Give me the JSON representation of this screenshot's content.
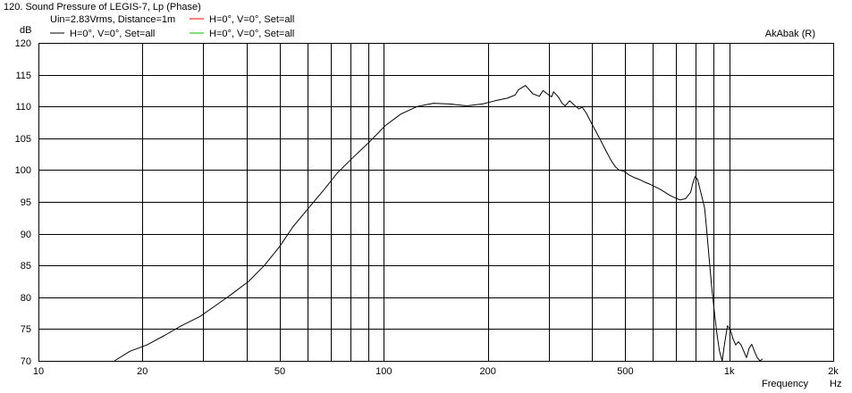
{
  "header": {
    "title": "120. Sound Pressure of LEGIS-7, Lp (Phase)",
    "watermark": "AkAbak (R)"
  },
  "legend": {
    "condition": "Uin=2.83Vrms, Distance=1m",
    "entries": [
      {
        "label": "H=0°, V=0°, Set=all",
        "color": "#000000"
      },
      {
        "label": "H=0°, V=0°, Set=all",
        "color": "#ff0000"
      },
      {
        "label": "H=0°, V=0°, Set=all",
        "color": "#00c000"
      }
    ]
  },
  "chart_data": {
    "type": "line",
    "x_scale": "log",
    "xlim": [
      10,
      2000
    ],
    "ylim": [
      70,
      120
    ],
    "grid": true,
    "ylabel": "dB",
    "xlabel": "Frequency",
    "xunit": "Hz",
    "x_ticks": [
      {
        "v": 10,
        "label": "10"
      },
      {
        "v": 20,
        "label": "20"
      },
      {
        "v": 50,
        "label": "50"
      },
      {
        "v": 100,
        "label": "100"
      },
      {
        "v": 200,
        "label": "200"
      },
      {
        "v": 500,
        "label": "500"
      },
      {
        "v": 1000,
        "label": "1k"
      },
      {
        "v": 2000,
        "label": "2k"
      }
    ],
    "y_ticks": [
      {
        "v": 70,
        "label": "70"
      },
      {
        "v": 75,
        "label": "75"
      },
      {
        "v": 80,
        "label": "80"
      },
      {
        "v": 85,
        "label": "85"
      },
      {
        "v": 90,
        "label": "90"
      },
      {
        "v": 95,
        "label": "95"
      },
      {
        "v": 100,
        "label": "100"
      },
      {
        "v": 105,
        "label": "105"
      },
      {
        "v": 110,
        "label": "110"
      },
      {
        "v": 115,
        "label": "115"
      },
      {
        "v": 120,
        "label": "120"
      }
    ],
    "series": [
      {
        "name": "H=0°, V=0°, Set=all",
        "color": "#000000",
        "x": [
          16.6,
          18.4,
          20.6,
          23.2,
          25.9,
          29.4,
          33.2,
          36.3,
          40.6,
          45.1,
          50.0,
          54.4,
          60.5,
          67.3,
          73.2,
          81.5,
          91.1,
          101,
          112,
          125,
          139,
          155,
          174,
          193,
          210,
          228,
          240,
          245,
          250,
          257,
          263,
          270,
          282,
          289,
          297,
          306,
          310,
          320,
          328,
          335,
          345,
          356,
          367,
          375,
          386,
          398,
          411,
          425,
          440,
          455,
          468,
          480,
          496,
          514,
          532,
          550,
          569,
          588,
          609,
          630,
          652,
          675,
          698,
          722,
          747,
          773,
          785,
          797,
          810,
          823,
          836,
          849,
          862,
          875,
          888,
          904,
          920,
          937,
          954,
          971,
          988,
          1006,
          1025,
          1044,
          1063,
          1082,
          1102,
          1122,
          1142,
          1162,
          1183,
          1205,
          1227,
          1249
        ],
        "values": [
          70.0,
          71.5,
          72.5,
          74.0,
          75.5,
          77.0,
          79.0,
          80.5,
          82.5,
          85.0,
          88.0,
          91.0,
          94.0,
          97.0,
          99.5,
          102.0,
          104.5,
          107.0,
          108.8,
          110.0,
          110.5,
          110.4,
          110.1,
          110.4,
          110.9,
          111.3,
          111.8,
          112.6,
          112.9,
          113.3,
          112.7,
          112.0,
          111.6,
          112.5,
          112.0,
          111.5,
          112.3,
          111.5,
          110.5,
          110.1,
          110.9,
          110.2,
          109.6,
          109.9,
          108.9,
          107.5,
          106.1,
          104.6,
          103.0,
          101.5,
          100.5,
          100.0,
          99.8,
          99.2,
          98.8,
          98.5,
          98.1,
          97.8,
          97.4,
          97.0,
          96.5,
          96.0,
          95.6,
          95.3,
          95.5,
          96.5,
          98.0,
          99.0,
          98.5,
          97.0,
          95.5,
          94.0,
          90.0,
          86.0,
          82.0,
          78.0,
          74.5,
          71.5,
          70.0,
          73.0,
          75.5,
          75.0,
          73.5,
          72.5,
          73.0,
          72.5,
          71.5,
          70.5,
          72.0,
          72.6,
          71.5,
          70.5,
          70.0,
          70.3
        ]
      }
    ]
  }
}
